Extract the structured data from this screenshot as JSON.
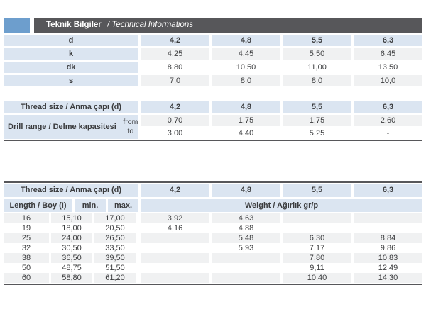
{
  "header": {
    "title_bold": "Teknik Bilgiler",
    "title_italic": "/ Technical Informations"
  },
  "colors": {
    "accent_blue": "#6d9ecd",
    "title_bar": "#57575a",
    "cell_blue": "#dbe5f1",
    "row_stripe": "#f0f1f2",
    "rule_dark": "#57575a",
    "text": "#3b3c3e"
  },
  "dimensions_table": {
    "rows": [
      {
        "label": "d",
        "values": [
          "4,2",
          "4,8",
          "5,5",
          "6,3"
        ]
      },
      {
        "label": "k",
        "values": [
          "4,25",
          "4,45",
          "5,50",
          "6,45"
        ]
      },
      {
        "label": "dk",
        "values": [
          "8,80",
          "10,50",
          "11,00",
          "13,50"
        ]
      },
      {
        "label": "s",
        "values": [
          "7,0",
          "8,0",
          "8,0",
          "10,0"
        ]
      }
    ]
  },
  "drill_table": {
    "header_label": "Thread size / Anma çapı (d)",
    "header_values": [
      "4,2",
      "4,8",
      "5,5",
      "6,3"
    ],
    "row_label": "Drill range / Delme kapasitesi",
    "from_label": "from",
    "to_label": "to",
    "from_values": [
      "0,70",
      "1,75",
      "1,75",
      "2,60"
    ],
    "to_values": [
      "3,00",
      "4,40",
      "5,25",
      "-"
    ]
  },
  "weight_table": {
    "header_label": "Thread size / Anma çapı (d)",
    "header_values": [
      "4,2",
      "4,8",
      "5,5",
      "6,3"
    ],
    "length_label": "Length / Boy (I)",
    "min_label": "min.",
    "max_label": "max.",
    "weight_label": "Weight / Ağırlık gr/p",
    "rows": [
      {
        "length": "16",
        "min": "15,10",
        "max": "17,00",
        "weights": [
          "3,92",
          "4,63",
          "",
          ""
        ]
      },
      {
        "length": "19",
        "min": "18,00",
        "max": "20,50",
        "weights": [
          "4,16",
          "4,88",
          "",
          ""
        ]
      },
      {
        "length": "25",
        "min": "24,00",
        "max": "26,50",
        "weights": [
          "",
          "5,48",
          "6,30",
          "8,84"
        ]
      },
      {
        "length": "32",
        "min": "30,50",
        "max": "33,50",
        "weights": [
          "",
          "5,93",
          "7,17",
          "9,86"
        ]
      },
      {
        "length": "38",
        "min": "36,50",
        "max": "39,50",
        "weights": [
          "",
          "",
          "7,80",
          "10,83"
        ]
      },
      {
        "length": "50",
        "min": "48,75",
        "max": "51,50",
        "weights": [
          "",
          "",
          "9,11",
          "12,49"
        ]
      },
      {
        "length": "60",
        "min": "58,80",
        "max": "61,20",
        "weights": [
          "",
          "",
          "10,40",
          "14,30"
        ]
      }
    ]
  }
}
